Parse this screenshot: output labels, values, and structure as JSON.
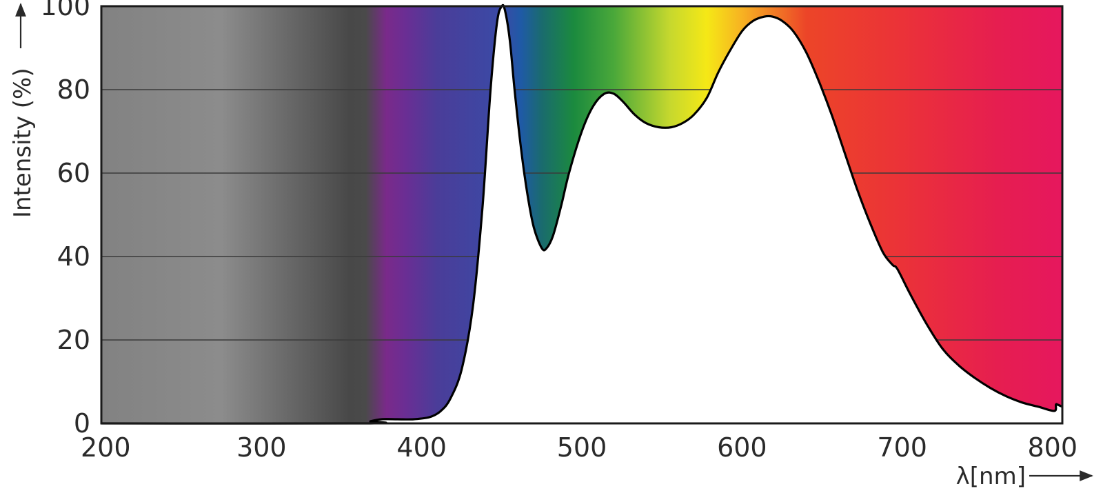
{
  "chart_data": {
    "type": "area",
    "title": "",
    "xlabel": "λ[nm]",
    "ylabel": "Intensity (%)",
    "xlim": [
      200,
      800
    ],
    "ylim": [
      0,
      100
    ],
    "grid": true,
    "x_ticks": [
      200,
      300,
      400,
      500,
      600,
      700,
      800
    ],
    "y_ticks": [
      0,
      20,
      40,
      60,
      80,
      100
    ],
    "background": "visible color spectrum gradient",
    "series": [
      {
        "x": [
          200,
          365,
          368,
          375,
          385,
          395,
          405,
          412,
          418,
          425,
          432,
          438,
          443,
          447,
          450,
          452,
          455,
          458,
          462,
          466,
          470,
          475,
          478,
          482,
          487,
          492,
          500,
          507,
          514,
          520,
          526,
          533,
          540,
          548,
          556,
          563,
          570,
          578,
          585,
          592,
          600,
          607,
          614,
          619,
          625,
          632,
          640,
          648,
          656,
          664,
          672,
          680,
          688,
          694,
          697,
          705,
          715,
          725,
          735,
          745,
          755,
          765,
          775,
          785,
          795,
          796,
          797,
          800
        ],
        "values": [
          0,
          0,
          0.5,
          1,
          1,
          1,
          1.5,
          3,
          6,
          13,
          28,
          52,
          80,
          96,
          100,
          99,
          92,
          80,
          66,
          55,
          47,
          42,
          42,
          45,
          52,
          60,
          70,
          76,
          79,
          79,
          77,
          74,
          72,
          71,
          71,
          72,
          74,
          78,
          84,
          89,
          94,
          96.5,
          97.5,
          97.5,
          96.5,
          94,
          89,
          82,
          74,
          65,
          56,
          48,
          41,
          38,
          37,
          31,
          24,
          18,
          14,
          11,
          8.5,
          6.5,
          5,
          4,
          3,
          4.5,
          4.5,
          4
        ]
      }
    ]
  },
  "colors": {
    "curve_stroke": "#000000",
    "curve_fill": "#ffffff",
    "gridline": "#3a3a3a",
    "frame": "#1a1a1a",
    "spectrum": [
      {
        "nm": 200,
        "color": "#828282"
      },
      {
        "nm": 275,
        "color": "#8c8c8c"
      },
      {
        "nm": 355,
        "color": "#484848"
      },
      {
        "nm": 365,
        "color": "#4a4a4a"
      },
      {
        "nm": 378,
        "color": "#7a2a8a"
      },
      {
        "nm": 390,
        "color": "#6a2e94"
      },
      {
        "nm": 410,
        "color": "#4a3d99"
      },
      {
        "nm": 450,
        "color": "#3a4aa6"
      },
      {
        "nm": 462,
        "color": "#1f5aa6"
      },
      {
        "nm": 475,
        "color": "#1a6b6e"
      },
      {
        "nm": 495,
        "color": "#1b8a3e"
      },
      {
        "nm": 520,
        "color": "#4aa83a"
      },
      {
        "nm": 555,
        "color": "#c6d82e"
      },
      {
        "nm": 578,
        "color": "#f5e816"
      },
      {
        "nm": 600,
        "color": "#f7b222"
      },
      {
        "nm": 640,
        "color": "#ec4528"
      },
      {
        "nm": 700,
        "color": "#eb3238"
      },
      {
        "nm": 760,
        "color": "#e61e50"
      },
      {
        "nm": 800,
        "color": "#e6175e"
      }
    ]
  }
}
